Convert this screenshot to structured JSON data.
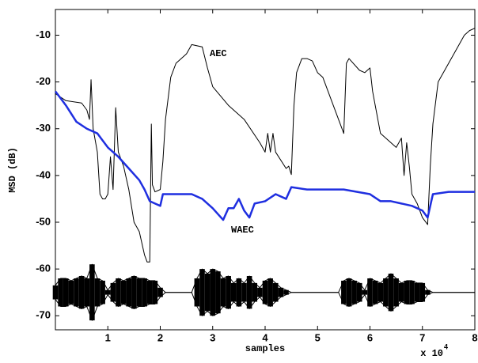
{
  "chart_data": {
    "type": "line",
    "y_label": "MSD (dB)",
    "x_label": "samples",
    "x_multiplier": "x 10",
    "x_multiplier_exp": "4",
    "xlim": [
      0,
      8
    ],
    "xticks": [
      1,
      2,
      3,
      4,
      5,
      6,
      7,
      8
    ],
    "ylim": [
      -73,
      -4.5
    ],
    "yticks": [
      -70,
      -60,
      -50,
      -40,
      -30,
      -20,
      -10
    ],
    "series": [
      {
        "name": "AEC",
        "color": "#000000",
        "x": [
          0,
          0.2,
          0.5,
          0.6,
          0.65,
          0.68,
          0.72,
          0.8,
          0.85,
          0.9,
          0.95,
          1.0,
          1.05,
          1.1,
          1.15,
          1.2,
          1.3,
          1.4,
          1.5,
          1.6,
          1.7,
          1.75,
          1.8,
          1.83,
          1.85,
          1.9,
          2.0,
          2.05,
          2.1,
          2.2,
          2.3,
          2.5,
          2.6,
          2.8,
          2.9,
          3.0,
          3.3,
          3.6,
          3.9,
          4.0,
          4.05,
          4.1,
          4.15,
          4.2,
          4.4,
          4.45,
          4.5,
          4.55,
          4.6,
          4.7,
          4.8,
          4.9,
          5.0,
          5.1,
          5.2,
          5.5,
          5.55,
          5.6,
          5.8,
          5.9,
          6.0,
          6.05,
          6.2,
          6.5,
          6.6,
          6.65,
          6.7,
          6.75,
          6.8,
          6.9,
          7.0,
          7.1,
          7.15,
          7.2,
          7.3,
          7.5,
          7.7,
          7.8,
          7.9,
          8.0
        ],
        "values": [
          -22.5,
          -24,
          -24.5,
          -26,
          -28,
          -19.5,
          -30,
          -35,
          -44,
          -45,
          -45,
          -44,
          -36,
          -43,
          -25.5,
          -35,
          -38,
          -43,
          -50,
          -52,
          -57,
          -58.5,
          -58.5,
          -29,
          -42,
          -43.5,
          -43,
          -37,
          -28,
          -19,
          -16,
          -14,
          -12,
          -12.5,
          -17,
          -21,
          -25,
          -28,
          -33,
          -35,
          -31,
          -35,
          -31,
          -35,
          -38.5,
          -38,
          -39.8,
          -25,
          -18,
          -15,
          -15,
          -15.5,
          -18,
          -19,
          -22,
          -31,
          -16,
          -15,
          -17.5,
          -18,
          -17,
          -22,
          -31,
          -34,
          -32,
          -40,
          -33,
          -38,
          -44,
          -46,
          -49,
          -50.5,
          -38,
          -29,
          -20,
          -16,
          -12,
          -10,
          -9,
          -8.5
        ]
      },
      {
        "name": "WAEC",
        "color": "#1f2fe0",
        "x": [
          0,
          0.2,
          0.4,
          0.6,
          0.8,
          1.0,
          1.2,
          1.4,
          1.6,
          1.7,
          1.8,
          1.9,
          2.0,
          2.05,
          2.4,
          2.6,
          2.8,
          3.0,
          3.2,
          3.3,
          3.4,
          3.5,
          3.6,
          3.7,
          3.8,
          4.0,
          4.2,
          4.4,
          4.5,
          4.8,
          5.0,
          5.5,
          6.0,
          6.2,
          6.4,
          6.6,
          6.8,
          7.0,
          7.1,
          7.2,
          7.5,
          8.0
        ],
        "values": [
          -22,
          -25,
          -28.5,
          -30,
          -31,
          -34,
          -36,
          -38.5,
          -41,
          -43,
          -45.5,
          -46,
          -46.5,
          -44,
          -44,
          -44,
          -45,
          -47,
          -49.5,
          -47,
          -47,
          -45,
          -47.5,
          -49,
          -46,
          -45.5,
          -44,
          -45,
          -42.5,
          -43,
          -43,
          -43,
          -44,
          -45.5,
          -45.5,
          -46,
          -46.5,
          -47.5,
          -49,
          -44,
          -43.5,
          -43.5
        ]
      },
      {
        "color": "#000000",
        "x": [
          0,
          0.1,
          0.2,
          0.3,
          0.4,
          0.5,
          0.6,
          0.7,
          0.8,
          0.9,
          1,
          1.1,
          1.2,
          1.3,
          1.4,
          1.5,
          1.6,
          1.7,
          1.8,
          1.9,
          2,
          2.1,
          2.2,
          2.3,
          2.4,
          2.5,
          2.6,
          2.7,
          2.8,
          2.9,
          3,
          3.1,
          3.2,
          3.3,
          3.4,
          3.5,
          3.6,
          3.7,
          3.8,
          3.9,
          4,
          4.1,
          4.2,
          4.3,
          4.4,
          4.5,
          4.6,
          4.7,
          4.8,
          4.9,
          5,
          5.1,
          5.2,
          5.3,
          5.4,
          5.5,
          5.6,
          5.7,
          5.8,
          5.9,
          6,
          6.1,
          6.2,
          6.3,
          6.4,
          6.5,
          6.6,
          6.7,
          6.8,
          6.9,
          7,
          7.1,
          7.2,
          7.3,
          7.4,
          7.5,
          7.6,
          7.7,
          7.8,
          7.9,
          8
        ],
        "values": [
          -63.5,
          -62,
          -62,
          -62.5,
          -62,
          -61.5,
          -62,
          -59,
          -62,
          -62.5,
          -64.5,
          -63,
          -62,
          -62.5,
          -62,
          -61.5,
          -62,
          -62,
          -62.5,
          -62.5,
          -64,
          -65,
          -65,
          -65,
          -65,
          -65,
          -65,
          -62,
          -60,
          -61,
          -60,
          -60.5,
          -62,
          -61.5,
          -63,
          -62,
          -63,
          -61.5,
          -63,
          -64,
          -62.5,
          -62,
          -63,
          -64,
          -64.5,
          -65,
          -65,
          -65,
          -65,
          -65,
          -65,
          -65,
          -65,
          -65,
          -65,
          -62.5,
          -62,
          -62.5,
          -63,
          -64.5,
          -62,
          -62.5,
          -63,
          -62,
          -61,
          -62,
          -63,
          -62.5,
          -62.5,
          -63,
          -63,
          -64.5,
          -65,
          -65,
          -65,
          -65,
          -65,
          -65,
          -65,
          -65,
          -65
        ]
      },
      {
        "color": "#000000",
        "x": [
          0,
          0.1,
          0.2,
          0.3,
          0.4,
          0.5,
          0.6,
          0.7,
          0.8,
          0.9,
          1,
          1.1,
          1.2,
          1.3,
          1.4,
          1.5,
          1.6,
          1.7,
          1.8,
          1.9,
          2,
          2.1,
          2.2,
          2.3,
          2.4,
          2.5,
          2.6,
          2.7,
          2.8,
          2.9,
          3,
          3.1,
          3.2,
          3.3,
          3.4,
          3.5,
          3.6,
          3.7,
          3.8,
          3.9,
          4,
          4.1,
          4.2,
          4.3,
          4.4,
          4.5,
          4.6,
          4.7,
          4.8,
          4.9,
          5,
          5.1,
          5.2,
          5.3,
          5.4,
          5.5,
          5.6,
          5.7,
          5.8,
          5.9,
          6,
          6.1,
          6.2,
          6.3,
          6.4,
          6.5,
          6.6,
          6.7,
          6.8,
          6.9,
          7,
          7.1,
          7.2,
          7.3,
          7.4,
          7.5,
          7.6,
          7.7,
          7.8,
          7.9,
          8
        ],
        "values": [
          -66.5,
          -68,
          -68,
          -67.5,
          -68,
          -68.5,
          -68,
          -71,
          -68,
          -67.5,
          -65.5,
          -67,
          -68,
          -67.5,
          -68,
          -68.5,
          -68,
          -68,
          -67.5,
          -67.5,
          -66,
          -65,
          -65,
          -65,
          -65,
          -65,
          -65,
          -68,
          -70,
          -69,
          -70,
          -69.5,
          -68,
          -68.5,
          -67,
          -68,
          -67,
          -68.5,
          -67,
          -66,
          -67.5,
          -68,
          -67,
          -66,
          -65.5,
          -65,
          -65,
          -65,
          -65,
          -65,
          -65,
          -65,
          -65,
          -65,
          -65,
          -67.5,
          -68,
          -67.5,
          -67,
          -65.5,
          -68,
          -67.5,
          -67,
          -68,
          -69,
          -68,
          -67,
          -67.5,
          -67.5,
          -67,
          -67,
          -65.5,
          -65,
          -65,
          -65,
          -65,
          -65,
          -65,
          -65,
          -65,
          -65
        ]
      }
    ]
  }
}
